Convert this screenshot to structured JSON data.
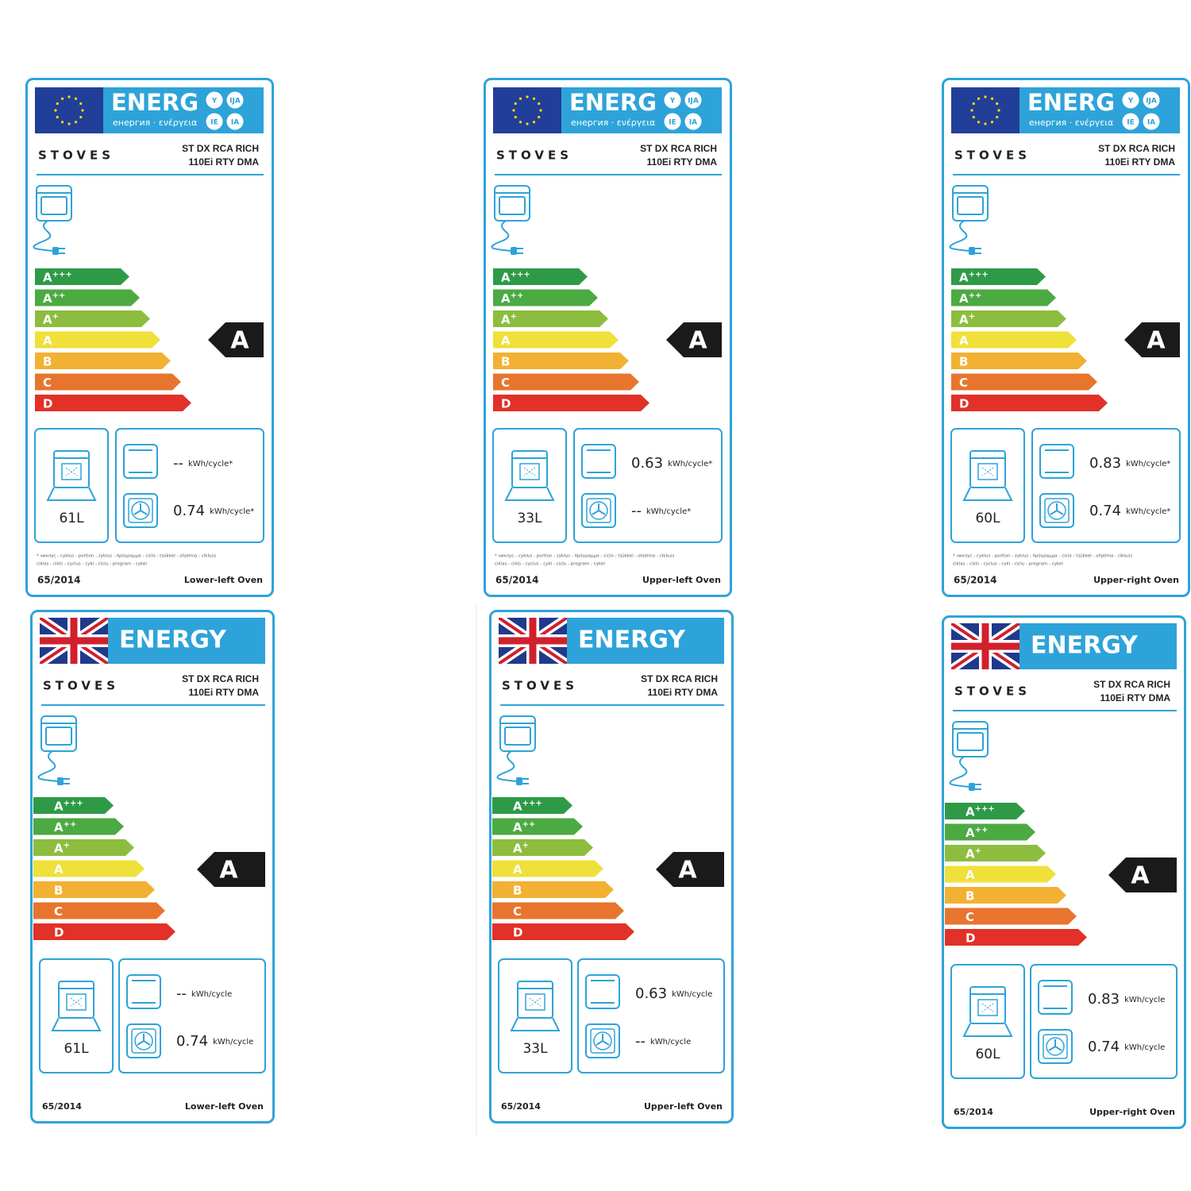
{
  "labels": [
    {
      "header": "ENERG",
      "subheader": "енергия · ενέργεια",
      "badges": [
        "Y",
        "IJA",
        "IE",
        "IA"
      ],
      "brand": "STOVES",
      "model": [
        "ST DX RCA RICH",
        "110Ei RTY DMA"
      ],
      "classes": [
        {
          "letter": "A",
          "plus": "+++"
        },
        {
          "letter": "A",
          "plus": "++"
        },
        {
          "letter": "A",
          "plus": "+"
        },
        {
          "letter": "A"
        },
        {
          "letter": "B"
        },
        {
          "letter": "C"
        },
        {
          "letter": "D"
        }
      ],
      "rating": "A",
      "volume": "61L",
      "conventional": {
        "value": "--",
        "unit": "kWh/cycle*"
      },
      "fan": {
        "value": 0.74,
        "unit": "kWh/cycle*"
      },
      "footnote": [
        "* чиклус - cyklus - portion - zyklus - πρόγραμμα - ciclo - tsükkel - ohjelma - cikluss",
        "ciklas - cikls - cyclus - cykl - ciclu - program - cykel"
      ],
      "regulation": "65/2014",
      "oven": "Lower-left Oven"
    },
    {
      "header": "ENERG",
      "subheader": "енергия · ενέργεια",
      "badges": [
        "Y",
        "IJA",
        "IE",
        "IA"
      ],
      "brand": "STOVES",
      "model": [
        "ST DX RCA RICH",
        "110Ei RTY DMA"
      ],
      "classes": [
        {
          "letter": "A",
          "plus": "+++"
        },
        {
          "letter": "A",
          "plus": "++"
        },
        {
          "letter": "A",
          "plus": "+"
        },
        {
          "letter": "A"
        },
        {
          "letter": "B"
        },
        {
          "letter": "C"
        },
        {
          "letter": "D"
        }
      ],
      "rating": "A",
      "volume": "33L",
      "conventional": {
        "value": 0.63,
        "unit": "kWh/cycle*"
      },
      "fan": {
        "value": "--",
        "unit": "kWh/cycle*"
      },
      "footnote": [
        "* чиклус - cyklus - portion - zyklus - πρόγραμμα - ciclo - tsükkel - ohjelma - cikluss",
        "ciklas - cikls - cyclus - cykl - ciclu - program - cykel"
      ],
      "regulation": "65/2014",
      "oven": "Upper-left Oven"
    },
    {
      "header": "ENERG",
      "subheader": "енергия · ενέργεια",
      "badges": [
        "Y",
        "IJA",
        "IE",
        "IA"
      ],
      "brand": "STOVES",
      "model": [
        "ST DX RCA RICH",
        "110Ei RTY DMA"
      ],
      "classes": [
        {
          "letter": "A",
          "plus": "+++"
        },
        {
          "letter": "A",
          "plus": "++"
        },
        {
          "letter": "A",
          "plus": "+"
        },
        {
          "letter": "A"
        },
        {
          "letter": "B"
        },
        {
          "letter": "C"
        },
        {
          "letter": "D"
        }
      ],
      "rating": "A",
      "volume": "60L",
      "conventional": {
        "value": 0.83,
        "unit": "kWh/cycle*"
      },
      "fan": {
        "value": 0.74,
        "unit": "kWh/cycle*"
      },
      "footnote": [
        "* чиклус - cyklus - portion - zyklus - πρόγραμμα - ciclo - tsükkel - ohjelma - cikluss",
        "ciklas - cikls - cyclus - cykl - ciclu - program - cykel"
      ],
      "regulation": "65/2014",
      "oven": "Upper-right Oven"
    },
    {
      "header": "ENERGY",
      "brand": "STOVES",
      "model": [
        "ST DX RCA RICH",
        "110Ei RTY DMA"
      ],
      "classes": [
        {
          "letter": "A",
          "plus": "+++"
        },
        {
          "letter": "A",
          "plus": "++"
        },
        {
          "letter": "A",
          "plus": "+"
        },
        {
          "letter": "A"
        },
        {
          "letter": "B"
        },
        {
          "letter": "C"
        },
        {
          "letter": "D"
        }
      ],
      "rating": "A",
      "volume": "61L",
      "conventional": {
        "value": "--",
        "unit": "kWh/cycle"
      },
      "fan": {
        "value": 0.74,
        "unit": "kWh/cycle"
      },
      "regulation": "65/2014",
      "oven": "Lower-left Oven"
    },
    {
      "header": "ENERGY",
      "brand": "STOVES",
      "model": [
        "ST DX RCA RICH",
        "110Ei RTY DMA"
      ],
      "classes": [
        {
          "letter": "A",
          "plus": "+++"
        },
        {
          "letter": "A",
          "plus": "++"
        },
        {
          "letter": "A",
          "plus": "+"
        },
        {
          "letter": "A"
        },
        {
          "letter": "B"
        },
        {
          "letter": "C"
        },
        {
          "letter": "D"
        }
      ],
      "rating": "A",
      "volume": "33L",
      "conventional": {
        "value": 0.63,
        "unit": "kWh/cycle"
      },
      "fan": {
        "value": "--",
        "unit": "kWh/cycle"
      },
      "regulation": "65/2014",
      "oven": "Upper-left Oven"
    },
    {
      "header": "ENERGY",
      "brand": "STOVES",
      "model": [
        "ST DX RCA RICH",
        "110Ei RTY DMA"
      ],
      "classes": [
        {
          "letter": "A",
          "plus": "+++"
        },
        {
          "letter": "A",
          "plus": "++"
        },
        {
          "letter": "A",
          "plus": "+"
        },
        {
          "letter": "A"
        },
        {
          "letter": "B"
        },
        {
          "letter": "C"
        },
        {
          "letter": "D"
        }
      ],
      "rating": "A",
      "volume": "60L",
      "conventional": {
        "value": 0.83,
        "unit": "kWh/cycle"
      },
      "fan": {
        "value": 0.74,
        "unit": "kWh/cycle"
      },
      "regulation": "65/2014",
      "oven": "Upper-right Oven"
    }
  ]
}
